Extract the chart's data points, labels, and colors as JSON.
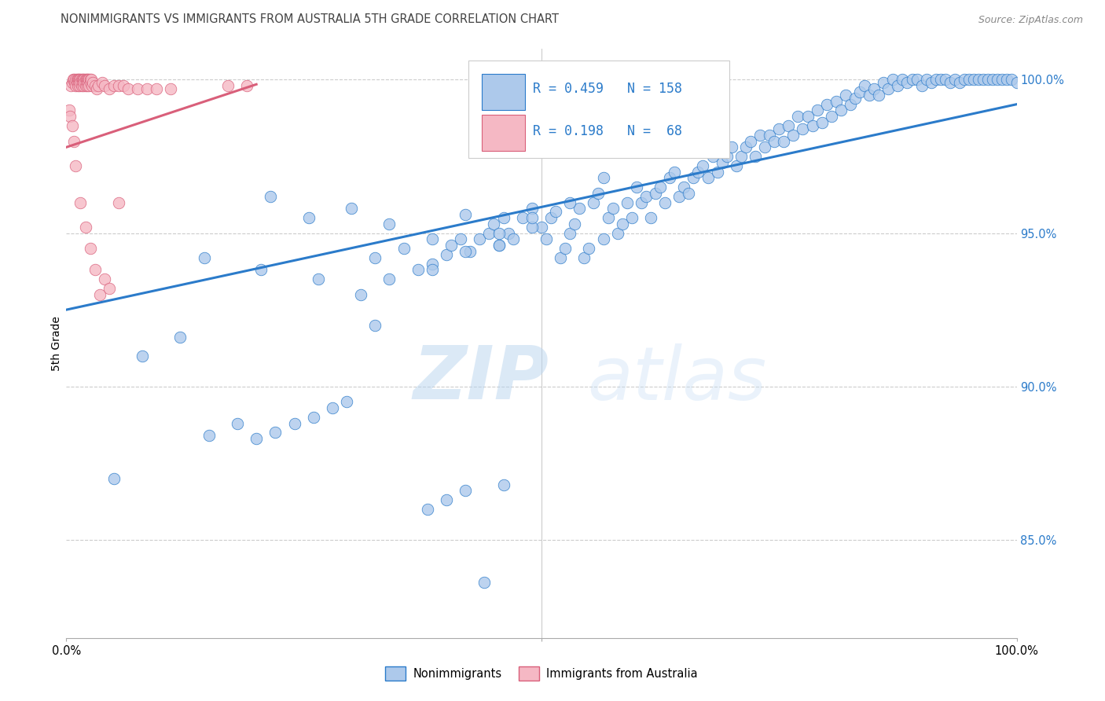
{
  "title": "NONIMMIGRANTS VS IMMIGRANTS FROM AUSTRALIA 5TH GRADE CORRELATION CHART",
  "source": "Source: ZipAtlas.com",
  "ylabel": "5th Grade",
  "watermark_zip": "ZIP",
  "watermark_atlas": "atlas",
  "blue_R": 0.459,
  "blue_N": 158,
  "pink_R": 0.198,
  "pink_N": 68,
  "blue_color": "#adc9eb",
  "pink_color": "#f5b8c4",
  "blue_line_color": "#2b7bca",
  "pink_line_color": "#d95f7a",
  "title_color": "#444444",
  "source_color": "#888888",
  "label_color": "#2b7bca",
  "axis_tick_color": "#2b7bca",
  "xlim": [
    0.0,
    1.0
  ],
  "ylim": [
    0.818,
    1.01
  ],
  "yticks": [
    0.85,
    0.9,
    0.95,
    1.0
  ],
  "ytick_labels": [
    "85.0%",
    "90.0%",
    "95.0%",
    "100.0%"
  ],
  "xticks": [
    0.0,
    0.5,
    1.0
  ],
  "xtick_labels": [
    "0.0%",
    "",
    "100.0%"
  ],
  "blue_line_x": [
    0.0,
    1.0
  ],
  "blue_line_y": [
    0.925,
    0.992
  ],
  "pink_line_x": [
    0.0,
    0.2
  ],
  "pink_line_y": [
    0.978,
    0.9985
  ],
  "blue_scatter_x": [
    0.05,
    0.08,
    0.12,
    0.15,
    0.18,
    0.2,
    0.22,
    0.24,
    0.26,
    0.28,
    0.295,
    0.31,
    0.325,
    0.34,
    0.355,
    0.37,
    0.385,
    0.4,
    0.405,
    0.415,
    0.425,
    0.435,
    0.445,
    0.45,
    0.455,
    0.46,
    0.465,
    0.47,
    0.48,
    0.49,
    0.5,
    0.505,
    0.51,
    0.515,
    0.52,
    0.525,
    0.53,
    0.535,
    0.54,
    0.545,
    0.55,
    0.555,
    0.56,
    0.565,
    0.57,
    0.575,
    0.58,
    0.585,
    0.59,
    0.595,
    0.6,
    0.605,
    0.61,
    0.615,
    0.62,
    0.625,
    0.63,
    0.635,
    0.64,
    0.645,
    0.65,
    0.655,
    0.66,
    0.665,
    0.67,
    0.675,
    0.68,
    0.685,
    0.69,
    0.695,
    0.7,
    0.705,
    0.71,
    0.715,
    0.72,
    0.725,
    0.73,
    0.735,
    0.74,
    0.745,
    0.75,
    0.755,
    0.76,
    0.765,
    0.77,
    0.775,
    0.78,
    0.785,
    0.79,
    0.795,
    0.8,
    0.805,
    0.81,
    0.815,
    0.82,
    0.825,
    0.83,
    0.835,
    0.84,
    0.845,
    0.85,
    0.855,
    0.86,
    0.865,
    0.87,
    0.875,
    0.88,
    0.885,
    0.89,
    0.895,
    0.9,
    0.905,
    0.91,
    0.915,
    0.92,
    0.925,
    0.93,
    0.935,
    0.94,
    0.945,
    0.95,
    0.955,
    0.96,
    0.965,
    0.97,
    0.975,
    0.98,
    0.985,
    0.99,
    0.995,
    1.0,
    0.215,
    0.255,
    0.3,
    0.34,
    0.385,
    0.42,
    0.455,
    0.49,
    0.145,
    0.205,
    0.265,
    0.325,
    0.385,
    0.42,
    0.455,
    0.49,
    0.53,
    0.565,
    0.38,
    0.4,
    0.42,
    0.44,
    0.46
  ],
  "blue_scatter_y": [
    0.87,
    0.91,
    0.916,
    0.884,
    0.888,
    0.883,
    0.885,
    0.888,
    0.89,
    0.893,
    0.895,
    0.93,
    0.92,
    0.935,
    0.945,
    0.938,
    0.94,
    0.943,
    0.946,
    0.948,
    0.944,
    0.948,
    0.95,
    0.953,
    0.946,
    0.955,
    0.95,
    0.948,
    0.955,
    0.958,
    0.952,
    0.948,
    0.955,
    0.957,
    0.942,
    0.945,
    0.95,
    0.953,
    0.958,
    0.942,
    0.945,
    0.96,
    0.963,
    0.948,
    0.955,
    0.958,
    0.95,
    0.953,
    0.96,
    0.955,
    0.965,
    0.96,
    0.962,
    0.955,
    0.963,
    0.965,
    0.96,
    0.968,
    0.97,
    0.962,
    0.965,
    0.963,
    0.968,
    0.97,
    0.972,
    0.968,
    0.975,
    0.97,
    0.973,
    0.975,
    0.978,
    0.972,
    0.975,
    0.978,
    0.98,
    0.975,
    0.982,
    0.978,
    0.982,
    0.98,
    0.984,
    0.98,
    0.985,
    0.982,
    0.988,
    0.984,
    0.988,
    0.985,
    0.99,
    0.986,
    0.992,
    0.988,
    0.993,
    0.99,
    0.995,
    0.992,
    0.994,
    0.996,
    0.998,
    0.995,
    0.997,
    0.995,
    0.999,
    0.997,
    1.0,
    0.998,
    1.0,
    0.999,
    1.0,
    1.0,
    0.998,
    1.0,
    0.999,
    1.0,
    1.0,
    1.0,
    0.999,
    1.0,
    0.999,
    1.0,
    1.0,
    1.0,
    1.0,
    1.0,
    1.0,
    1.0,
    1.0,
    1.0,
    1.0,
    1.0,
    0.999,
    0.962,
    0.955,
    0.958,
    0.953,
    0.948,
    0.956,
    0.946,
    0.952,
    0.942,
    0.938,
    0.935,
    0.942,
    0.938,
    0.944,
    0.95,
    0.955,
    0.96,
    0.968,
    0.86,
    0.863,
    0.866,
    0.836,
    0.868
  ],
  "pink_scatter_x": [
    0.003,
    0.005,
    0.006,
    0.007,
    0.008,
    0.009,
    0.01,
    0.01,
    0.011,
    0.011,
    0.012,
    0.012,
    0.013,
    0.013,
    0.014,
    0.014,
    0.015,
    0.015,
    0.016,
    0.016,
    0.017,
    0.017,
    0.018,
    0.018,
    0.019,
    0.019,
    0.02,
    0.02,
    0.021,
    0.021,
    0.022,
    0.022,
    0.023,
    0.023,
    0.024,
    0.024,
    0.025,
    0.025,
    0.026,
    0.027,
    0.028,
    0.03,
    0.032,
    0.034,
    0.038,
    0.04,
    0.045,
    0.05,
    0.055,
    0.06,
    0.065,
    0.075,
    0.085,
    0.004,
    0.006,
    0.008,
    0.01,
    0.015,
    0.02,
    0.025,
    0.03,
    0.035,
    0.04,
    0.045,
    0.055,
    0.17,
    0.19,
    0.095,
    0.11
  ],
  "pink_scatter_y": [
    0.99,
    0.998,
    0.999,
    1.0,
    1.0,
    0.999,
    1.0,
    0.998,
    1.0,
    0.999,
    1.0,
    0.998,
    1.0,
    0.999,
    1.0,
    0.998,
    1.0,
    0.999,
    1.0,
    0.998,
    1.0,
    0.999,
    1.0,
    0.998,
    1.0,
    0.999,
    1.0,
    0.998,
    1.0,
    0.999,
    1.0,
    0.998,
    1.0,
    0.999,
    1.0,
    0.998,
    1.0,
    0.999,
    1.0,
    0.998,
    0.999,
    0.998,
    0.997,
    0.998,
    0.999,
    0.998,
    0.997,
    0.998,
    0.998,
    0.998,
    0.997,
    0.997,
    0.997,
    0.988,
    0.985,
    0.98,
    0.972,
    0.96,
    0.952,
    0.945,
    0.938,
    0.93,
    0.935,
    0.932,
    0.96,
    0.998,
    0.998,
    0.997,
    0.997
  ]
}
